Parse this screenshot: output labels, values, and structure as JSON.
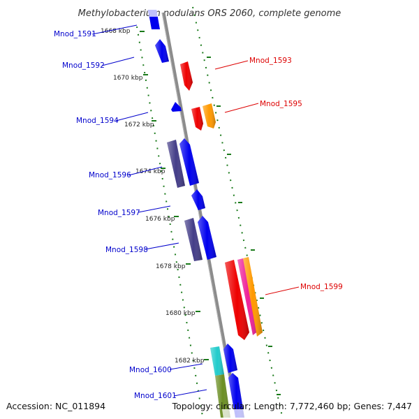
{
  "title": "Methylobacterium nodulans ORS 2060, complete genome",
  "footer": {
    "accession": "Accession: NC_011894",
    "topology": "Topology: circular; Length: 7,772,460 bp; Genes: 7,447"
  },
  "colors": {
    "backbone": "#8c8c8c",
    "tick": "#1a7a1a",
    "label_forward": "#0000cc",
    "label_reverse": "#dd0000"
  },
  "ticks": [
    "1668 kbp",
    "1670 kbp",
    "1672 kbp",
    "1674 kbp",
    "1676 kbp",
    "1678 kbp",
    "1680 kbp",
    "1682 kbp"
  ],
  "gene_labels": [
    {
      "id": "Mnod_1591",
      "strand": "forward"
    },
    {
      "id": "Mnod_1592",
      "strand": "forward"
    },
    {
      "id": "Mnod_1593",
      "strand": "reverse"
    },
    {
      "id": "Mnod_1594",
      "strand": "forward"
    },
    {
      "id": "Mnod_1595",
      "strand": "reverse"
    },
    {
      "id": "Mnod_1596",
      "strand": "forward"
    },
    {
      "id": "Mnod_1597",
      "strand": "forward"
    },
    {
      "id": "Mnod_1598",
      "strand": "forward"
    },
    {
      "id": "Mnod_1599",
      "strand": "reverse"
    },
    {
      "id": "Mnod_1600",
      "strand": "forward"
    },
    {
      "id": "Mnod_1601",
      "strand": "forward"
    }
  ],
  "features": [
    {
      "name": "feature-1591",
      "strand": "forward",
      "color": "#0000ee"
    },
    {
      "name": "feature-1592",
      "strand": "forward",
      "color": "#0000ee"
    },
    {
      "name": "feature-1593",
      "strand": "reverse",
      "color": "#ee0000"
    },
    {
      "name": "feature-1594",
      "strand": "forward",
      "color": "#0000ee"
    },
    {
      "name": "feature-1595a",
      "strand": "reverse",
      "color": "#ee0000"
    },
    {
      "name": "feature-1595b",
      "strand": "reverse",
      "color": "#ff9900"
    },
    {
      "name": "feature-1596-a",
      "strand": "forward",
      "color": "#443d88"
    },
    {
      "name": "feature-1596-b",
      "strand": "forward",
      "color": "#0000ee"
    },
    {
      "name": "feature-1597",
      "strand": "forward",
      "color": "#0000ee"
    },
    {
      "name": "feature-1598-a",
      "strand": "forward",
      "color": "#443d88"
    },
    {
      "name": "feature-1598-b",
      "strand": "forward",
      "color": "#0000ee"
    },
    {
      "name": "feature-1599-a",
      "strand": "reverse",
      "color": "#ee0000"
    },
    {
      "name": "feature-1599-b",
      "strand": "reverse",
      "color": "#ee2299"
    },
    {
      "name": "feature-1599-c",
      "strand": "reverse",
      "color": "#ff9900"
    },
    {
      "name": "feature-1600-a",
      "strand": "forward",
      "color": "#22cccc"
    },
    {
      "name": "feature-1600-b",
      "strand": "forward",
      "color": "#0000ee"
    },
    {
      "name": "feature-1601-a",
      "strand": "forward",
      "color": "#6b8e23"
    },
    {
      "name": "feature-1601-b",
      "strand": "forward",
      "color": "#0000ee"
    }
  ]
}
